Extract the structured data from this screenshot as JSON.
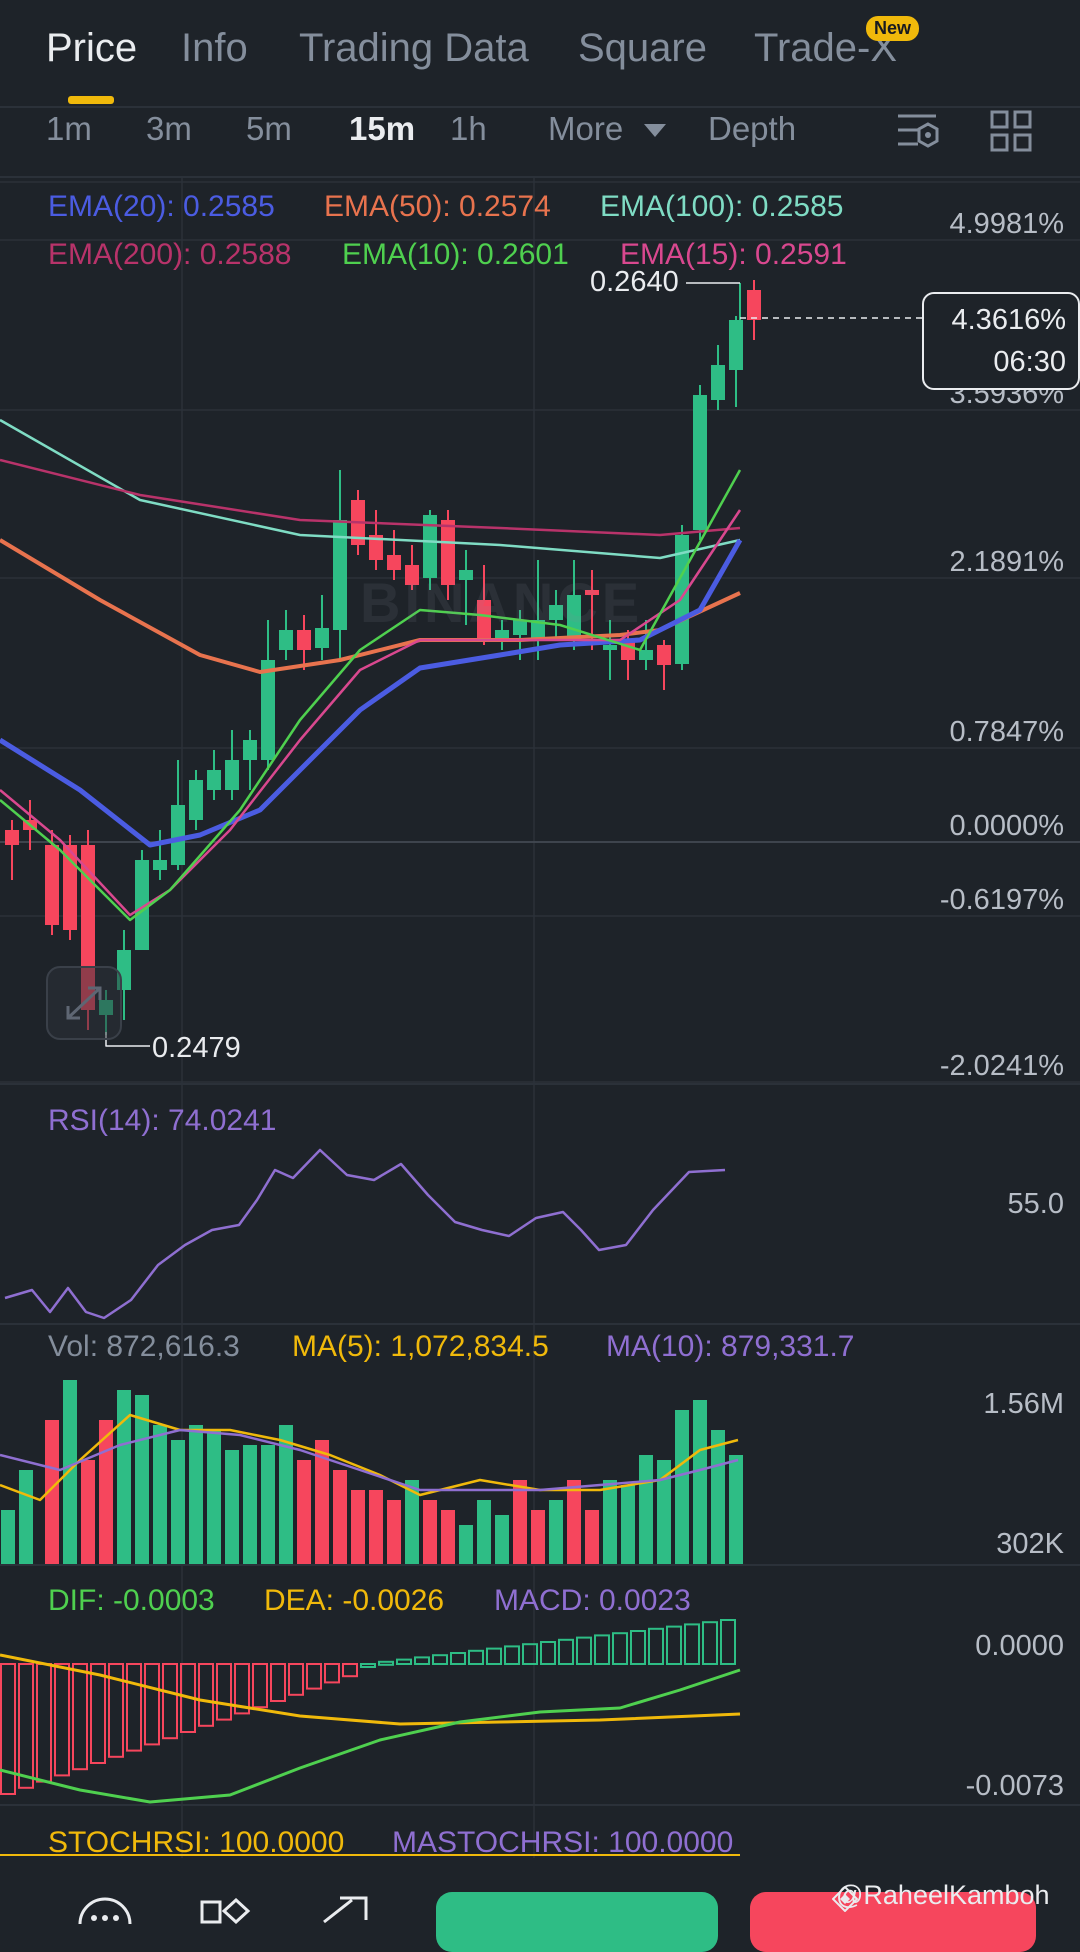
{
  "tabs": [
    {
      "label": "Price"
    },
    {
      "label": "Info"
    },
    {
      "label": "Trading Data"
    },
    {
      "label": "Square"
    },
    {
      "label": "Trade-X"
    }
  ],
  "new_badge": "New",
  "intervals": [
    {
      "label": "1m"
    },
    {
      "label": "3m"
    },
    {
      "label": "5m"
    },
    {
      "label": "15m"
    },
    {
      "label": "1h"
    },
    {
      "label": "More"
    },
    {
      "label": "Depth"
    }
  ],
  "ema_legend": {
    "ema20": "EMA(20): 0.2585",
    "ema50": "EMA(50): 0.2574",
    "ema100": "EMA(100): 0.2585",
    "ema200": "EMA(200): 0.2588",
    "ema10": "EMA(10): 0.2601",
    "ema15": "EMA(15): 0.2591"
  },
  "price_axis": [
    "4.9981%",
    "3.5936%",
    "2.1891%",
    "0.7847%",
    "0.0000%",
    "-0.6197%",
    "-2.0241%"
  ],
  "high_label": "0.2640",
  "low_label": "0.2479",
  "current_change": "4.3616%",
  "countdown": "06:30",
  "watermark": "BINANCE",
  "rsi": {
    "label": "RSI(14): 74.0241",
    "axis": "55.0"
  },
  "volume": {
    "vol": "Vol: 872,616.3",
    "ma5": "MA(5): 1,072,834.5",
    "ma10": "MA(10): 879,331.7",
    "axis_top": "1.56M",
    "axis_bottom": "302K"
  },
  "macd": {
    "dif": "DIF: -0.0003",
    "dea": "DEA: -0.0026",
    "macd": "MACD: 0.0023",
    "axis_top": "0.0000",
    "axis_bottom": "-0.0073"
  },
  "stochrsi": {
    "stoch": "STOCHRSI: 100.0000",
    "ma": "MASTOCHRSI: 100.0000"
  },
  "credit": "@RaheelKamboh",
  "colors": {
    "up": "#2ebd85",
    "down": "#f6465d",
    "ema20": "#4b5ce2",
    "ema50": "#e8734e",
    "ema100": "#7fdcc4",
    "ema200": "#b8336a",
    "ema10": "#4fd04f",
    "ema15": "#d9488f",
    "ma5": "#f0b90b",
    "ma10": "#8f6fd1"
  }
}
